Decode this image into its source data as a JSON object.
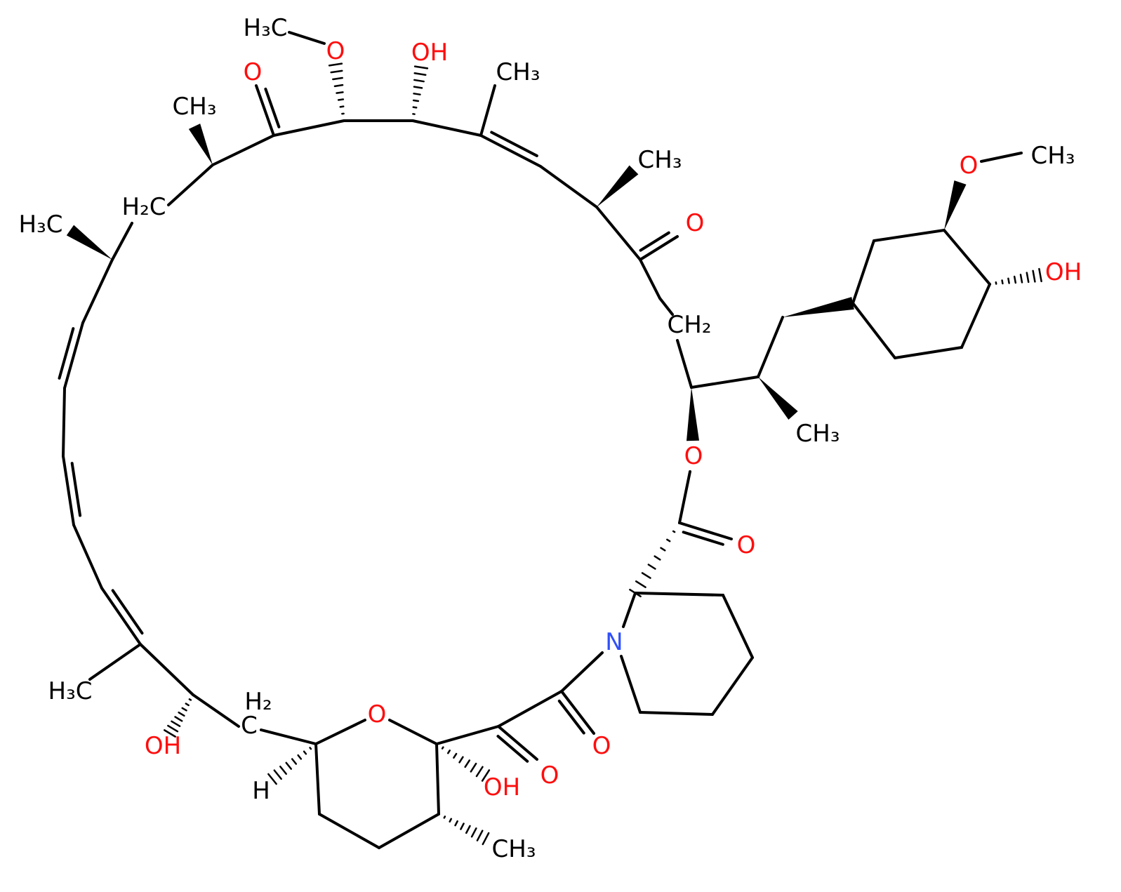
{
  "atom_labels": [
    "H₃C",
    "O",
    "OH",
    "O",
    "CH₃",
    "CH₃",
    "CH₃",
    "O",
    "H₂C",
    "H₃C",
    "O",
    "CH₃",
    "OH",
    "CH₂",
    "O",
    "CH₃",
    "O",
    "N",
    "H₃C",
    "H₂",
    "C",
    "O",
    "OH",
    "O",
    "O",
    "OH",
    "H",
    "CH₃"
  ]
}
